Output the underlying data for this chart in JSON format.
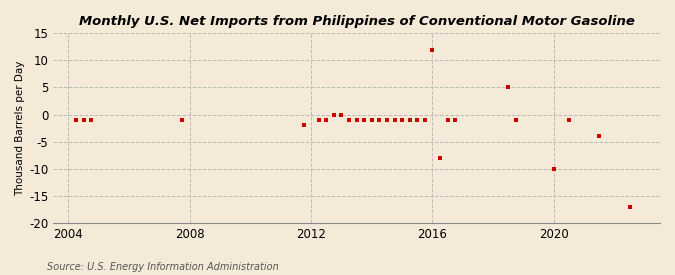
{
  "title": "Monthly U.S. Net Imports from Philippines of Conventional Motor Gasoline",
  "ylabel": "Thousand Barrels per Day",
  "source": "Source: U.S. Energy Information Administration",
  "background_color": "#f5ead8",
  "plot_background_color": "#f5ead8",
  "ylim": [
    -20,
    15
  ],
  "yticks": [
    -20,
    -15,
    -10,
    -5,
    0,
    5,
    10,
    15
  ],
  "xlim": [
    2003.5,
    2023.5
  ],
  "xticks": [
    2004,
    2008,
    2012,
    2016,
    2020
  ],
  "grid_color": "#bbbbbb",
  "marker_color": "#cc0000",
  "data_points": [
    [
      2004.25,
      -1
    ],
    [
      2004.5,
      -1
    ],
    [
      2004.75,
      -1
    ],
    [
      2007.75,
      -1
    ],
    [
      2011.75,
      -2
    ],
    [
      2012.25,
      -1
    ],
    [
      2012.5,
      -1
    ],
    [
      2012.75,
      0
    ],
    [
      2013.0,
      0
    ],
    [
      2013.25,
      -1
    ],
    [
      2013.5,
      -1
    ],
    [
      2013.75,
      -1
    ],
    [
      2014.0,
      -1
    ],
    [
      2014.25,
      -1
    ],
    [
      2014.5,
      -1
    ],
    [
      2014.75,
      -1
    ],
    [
      2015.0,
      -1
    ],
    [
      2015.25,
      -1
    ],
    [
      2015.5,
      -1
    ],
    [
      2015.75,
      -1
    ],
    [
      2016.0,
      12
    ],
    [
      2016.25,
      -8
    ],
    [
      2016.5,
      -1
    ],
    [
      2016.75,
      -1
    ],
    [
      2018.5,
      5
    ],
    [
      2018.75,
      -1
    ],
    [
      2020.0,
      -10
    ],
    [
      2020.5,
      -1
    ],
    [
      2021.5,
      -4
    ],
    [
      2022.5,
      -17
    ]
  ]
}
